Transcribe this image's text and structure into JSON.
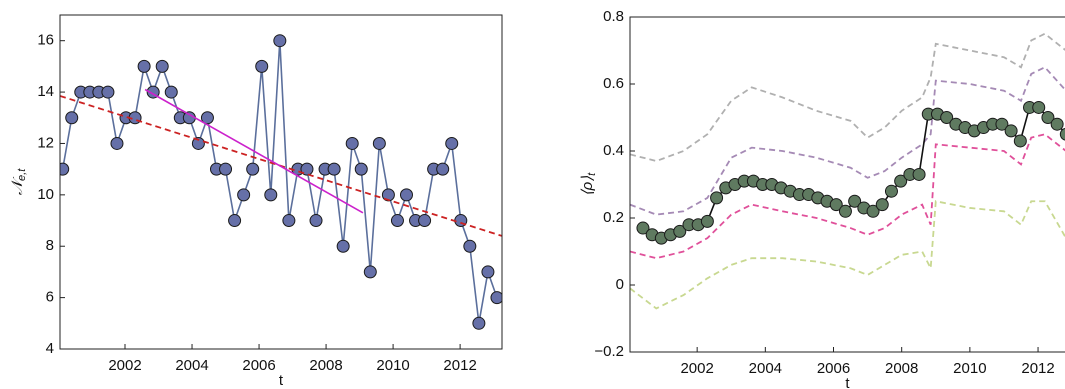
{
  "chart_data": [
    {
      "type": "line",
      "xlabel": "t",
      "ylabel": "𝒩",
      "ylabel_sub": "e,t",
      "xlim": [
        2000.06,
        2013.25
      ],
      "ylim": [
        4,
        17
      ],
      "xticks": [
        2002,
        2004,
        2006,
        2008,
        2010,
        2012
      ],
      "yticks": [
        4,
        6,
        8,
        10,
        12,
        14,
        16
      ],
      "series": [
        {
          "color": "#5b6f9c",
          "marker_color": "#6670a8",
          "dashed": false,
          "x": [
            2000.14,
            2000.41,
            2000.68,
            2000.95,
            2001.22,
            2001.49,
            2001.76,
            2002.03,
            2002.3,
            2002.57,
            2002.84,
            2003.11,
            2003.38,
            2003.65,
            2003.92,
            2004.19,
            2004.46,
            2004.73,
            2005.0,
            2005.27,
            2005.54,
            2005.81,
            2006.08,
            2006.35,
            2006.62,
            2006.89,
            2007.16,
            2007.43,
            2007.7,
            2007.97,
            2008.24,
            2008.51,
            2008.78,
            2009.05,
            2009.32,
            2009.59,
            2009.86,
            2010.13,
            2010.4,
            2010.67,
            2010.94,
            2011.21,
            2011.48,
            2011.75,
            2012.02,
            2012.29,
            2012.56,
            2012.83,
            2013.1
          ],
          "values": [
            11,
            13,
            14,
            14,
            14,
            14,
            12,
            13,
            13,
            15,
            14,
            15,
            14,
            13,
            13,
            12,
            13,
            11,
            11,
            9,
            10,
            11,
            15,
            10,
            16,
            9,
            11,
            11,
            9,
            11,
            11,
            8,
            12,
            11,
            7,
            12,
            10,
            9,
            10,
            9,
            9,
            11,
            11,
            12,
            9,
            8,
            5,
            7,
            6
          ]
        },
        {
          "color": "#cc2222",
          "dashed": true,
          "x": [
            2000.06,
            2013.25
          ],
          "values": [
            13.85,
            8.4
          ]
        },
        {
          "color": "#cc22cc",
          "dashed": false,
          "x": [
            2002.6,
            2009.1
          ],
          "values": [
            14.1,
            9.3
          ]
        }
      ]
    },
    {
      "type": "line",
      "xlabel": "t",
      "ylabel": "⟨ρ⟩",
      "ylabel_sub": "t",
      "xlim": [
        2000.03,
        2012.82
      ],
      "ylim": [
        -0.2,
        0.8
      ],
      "xticks": [
        2002,
        2004,
        2006,
        2008,
        2010,
        2012
      ],
      "yticks": [
        {
          "value": -0.2,
          "label": "−0.2"
        },
        0,
        0.2,
        0.4,
        0.6,
        0.8
      ],
      "series": [
        {
          "color": "#b0b0b0",
          "dashed": true,
          "x": [
            2000.03,
            2000.8,
            2001.6,
            2002.3,
            2003.0,
            2003.6,
            2004.5,
            2005.5,
            2006.5,
            2007.0,
            2007.5,
            2008.0,
            2008.6,
            2008.85,
            2009.0,
            2010.0,
            2011.0,
            2011.5,
            2011.8,
            2012.2,
            2012.82
          ],
          "values": [
            0.39,
            0.37,
            0.4,
            0.45,
            0.55,
            0.59,
            0.56,
            0.52,
            0.49,
            0.44,
            0.47,
            0.52,
            0.56,
            0.62,
            0.72,
            0.7,
            0.68,
            0.65,
            0.73,
            0.75,
            0.7
          ]
        },
        {
          "color": "#a58ab5",
          "dashed": true,
          "x": [
            2000.03,
            2000.8,
            2001.6,
            2002.3,
            2003.0,
            2003.6,
            2004.5,
            2005.5,
            2006.5,
            2007.0,
            2007.5,
            2008.0,
            2008.6,
            2008.85,
            2009.0,
            2010.0,
            2011.0,
            2011.5,
            2011.8,
            2012.2,
            2012.82
          ],
          "values": [
            0.24,
            0.21,
            0.22,
            0.26,
            0.38,
            0.41,
            0.4,
            0.38,
            0.35,
            0.32,
            0.34,
            0.38,
            0.42,
            0.45,
            0.61,
            0.6,
            0.58,
            0.55,
            0.63,
            0.65,
            0.58
          ]
        },
        {
          "color": "#e0509a",
          "dashed": true,
          "x": [
            2000.03,
            2000.8,
            2001.6,
            2002.3,
            2003.0,
            2003.6,
            2004.5,
            2005.5,
            2006.5,
            2007.0,
            2007.5,
            2008.0,
            2008.6,
            2008.85,
            2009.0,
            2010.0,
            2011.0,
            2011.5,
            2011.8,
            2012.2,
            2012.82
          ],
          "values": [
            0.1,
            0.08,
            0.1,
            0.14,
            0.21,
            0.24,
            0.22,
            0.2,
            0.17,
            0.15,
            0.17,
            0.21,
            0.24,
            0.18,
            0.42,
            0.41,
            0.4,
            0.36,
            0.44,
            0.45,
            0.4
          ]
        },
        {
          "color": "#c8d890",
          "dashed": true,
          "x": [
            2000.03,
            2000.8,
            2001.6,
            2002.3,
            2003.0,
            2003.6,
            2004.5,
            2005.5,
            2006.5,
            2007.0,
            2007.5,
            2008.0,
            2008.6,
            2008.85,
            2009.0,
            2010.0,
            2011.0,
            2011.5,
            2011.8,
            2012.2,
            2012.82
          ],
          "values": [
            -0.01,
            -0.07,
            -0.03,
            0.02,
            0.06,
            0.08,
            0.08,
            0.07,
            0.05,
            0.03,
            0.06,
            0.09,
            0.1,
            0.05,
            0.25,
            0.23,
            0.22,
            0.18,
            0.25,
            0.25,
            0.14
          ]
        },
        {
          "color": "#111111",
          "marker_color": "#5f7a60",
          "dashed": false,
          "x": [
            2000.41,
            2000.68,
            2000.95,
            2001.22,
            2001.49,
            2001.76,
            2002.03,
            2002.3,
            2002.57,
            2002.84,
            2003.11,
            2003.38,
            2003.65,
            2003.92,
            2004.19,
            2004.46,
            2004.73,
            2005.0,
            2005.27,
            2005.54,
            2005.81,
            2006.08,
            2006.35,
            2006.62,
            2006.89,
            2007.16,
            2007.43,
            2007.7,
            2007.97,
            2008.24,
            2008.51,
            2008.78,
            2009.05,
            2009.32,
            2009.59,
            2009.86,
            2010.13,
            2010.4,
            2010.67,
            2010.94,
            2011.21,
            2011.48,
            2011.75,
            2012.02,
            2012.29,
            2012.56,
            2012.83
          ],
          "values": [
            0.17,
            0.15,
            0.14,
            0.15,
            0.16,
            0.18,
            0.18,
            0.19,
            0.26,
            0.29,
            0.3,
            0.31,
            0.31,
            0.3,
            0.3,
            0.29,
            0.28,
            0.27,
            0.27,
            0.26,
            0.25,
            0.24,
            0.22,
            0.25,
            0.23,
            0.22,
            0.24,
            0.28,
            0.31,
            0.33,
            0.33,
            0.51,
            0.51,
            0.5,
            0.48,
            0.47,
            0.46,
            0.47,
            0.48,
            0.48,
            0.46,
            0.43,
            0.53,
            0.53,
            0.5,
            0.48,
            0.45
          ]
        }
      ]
    }
  ]
}
